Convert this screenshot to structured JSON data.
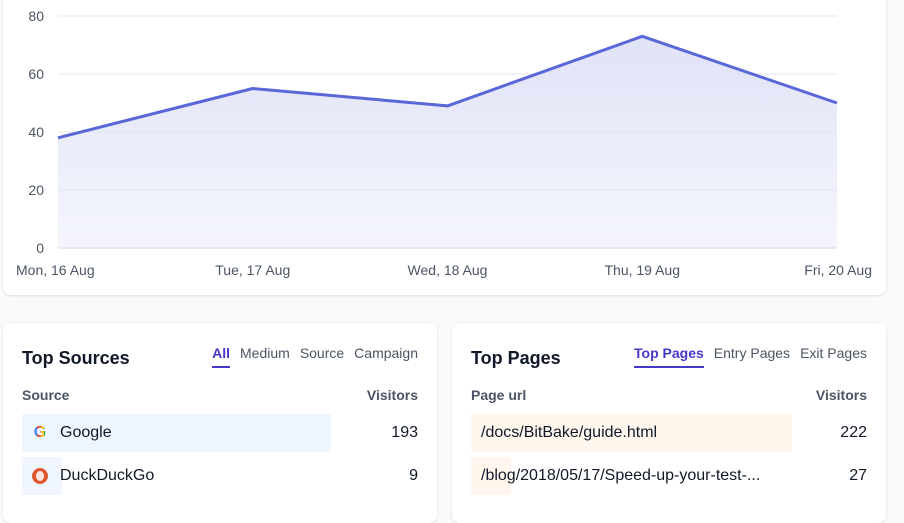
{
  "chart_data": {
    "type": "area",
    "categories": [
      "Mon, 16 Aug",
      "Tue, 17 Aug",
      "Wed, 18 Aug",
      "Thu, 19 Aug",
      "Fri, 20 Aug"
    ],
    "values": [
      38,
      55,
      49,
      73,
      50
    ],
    "yticks": [
      "0",
      "20",
      "40",
      "60",
      "80"
    ],
    "ylim": [
      0,
      80
    ],
    "title": "",
    "xlabel": "",
    "ylabel": "",
    "line_color": "#5a67d8",
    "fill_color": "#e0e3f7",
    "grid": true
  },
  "top_sources": {
    "title": "Top Sources",
    "tabs": [
      "All",
      "Medium",
      "Source",
      "Campaign"
    ],
    "active_tab": "All",
    "col_left": "Source",
    "col_right": "Visitors",
    "rows": [
      {
        "icon": "google-icon",
        "label": "Google",
        "count": "193",
        "share": 0.78
      },
      {
        "icon": "duckduckgo-icon",
        "label": "DuckDuckGo",
        "count": "9",
        "share": 0.04
      }
    ],
    "bar_color": "#eff6ff"
  },
  "top_pages": {
    "title": "Top Pages",
    "tabs": [
      "Top Pages",
      "Entry Pages",
      "Exit Pages"
    ],
    "active_tab": "Top Pages",
    "col_left": "Page url",
    "col_right": "Visitors",
    "rows": [
      {
        "label": "/docs/BitBake/guide.html",
        "count": "222",
        "share": 0.81
      },
      {
        "label": "/blog/2018/05/17/Speed-up-your-test-...",
        "count": "27",
        "share": 0.1
      }
    ],
    "bar_color": "#fff7ed"
  }
}
